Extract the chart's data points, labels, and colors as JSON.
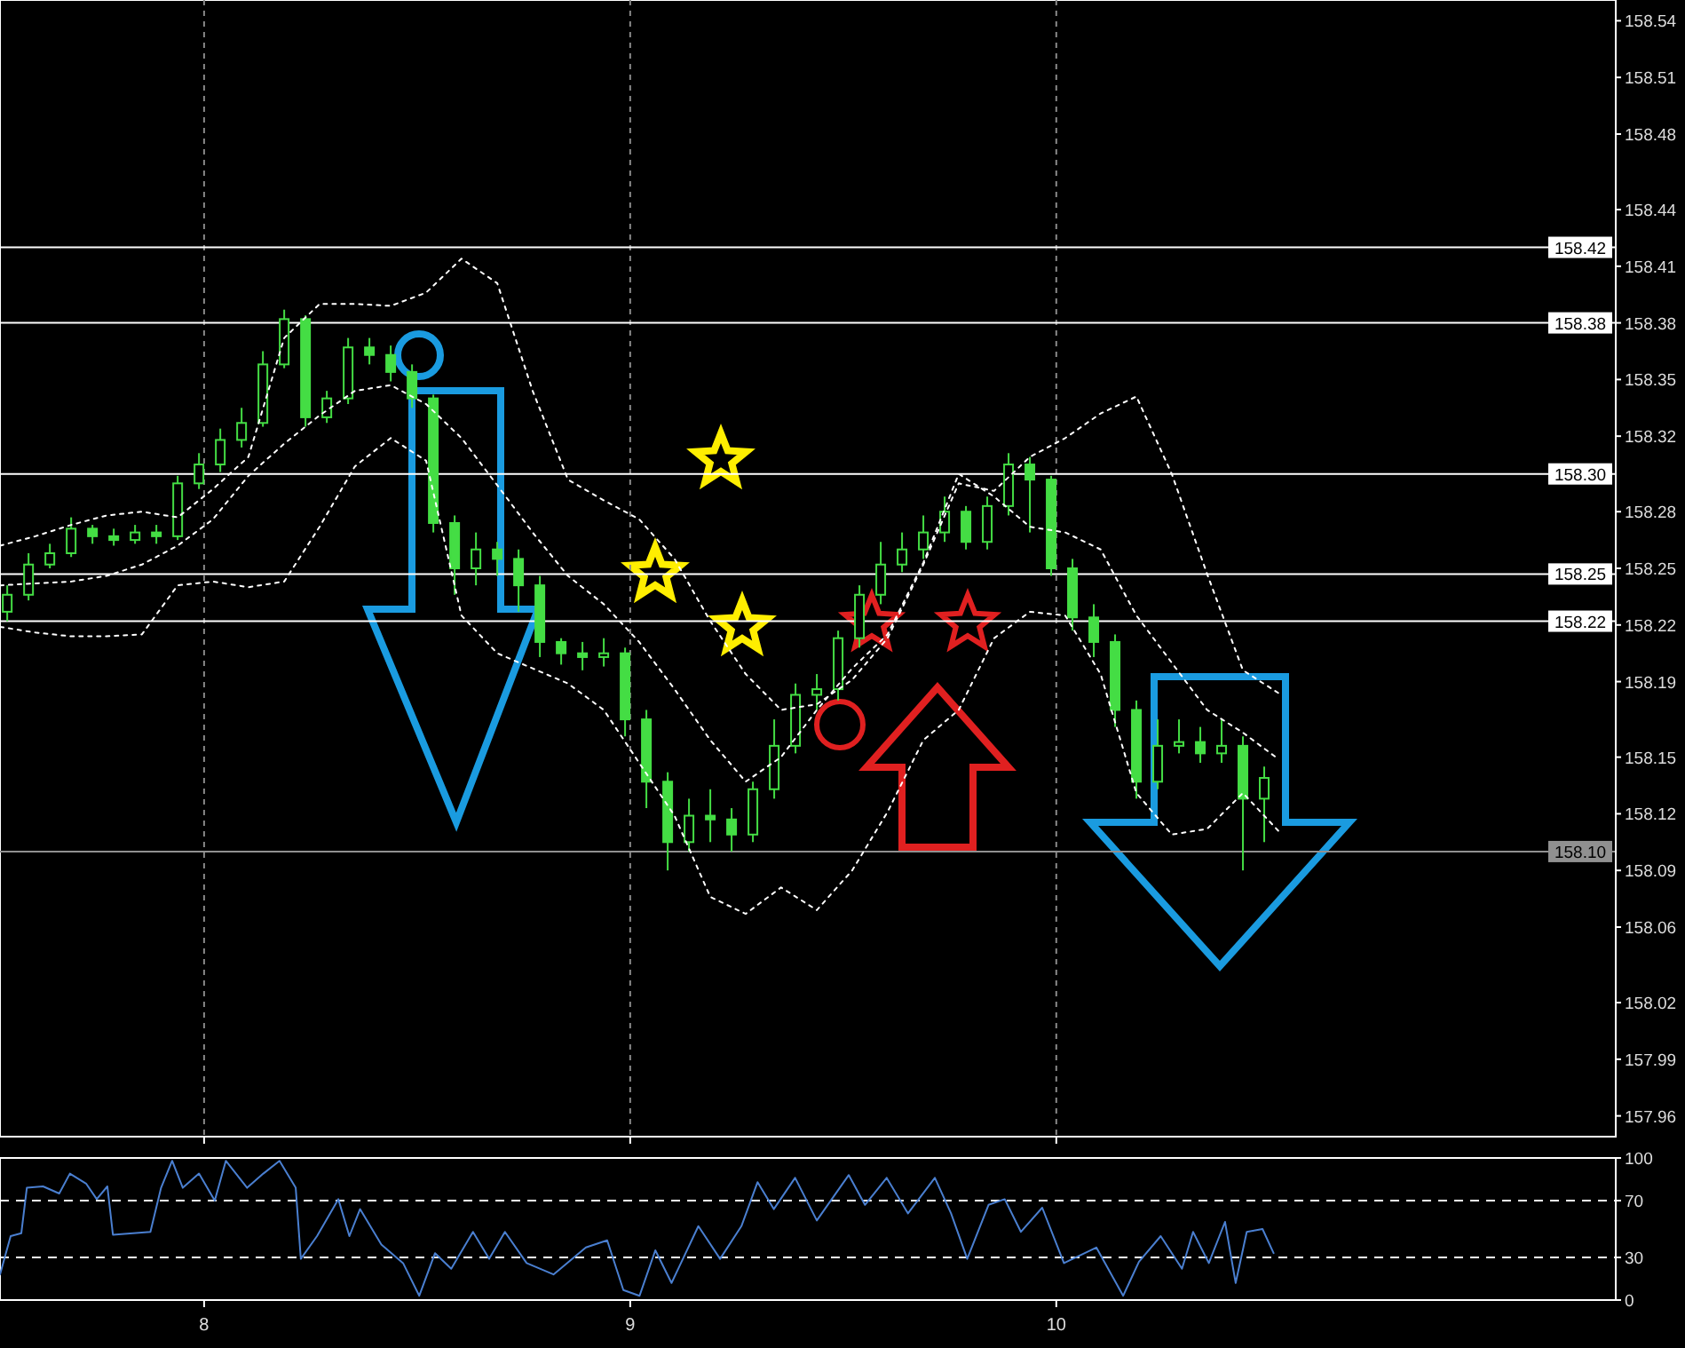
{
  "chart_data": [
    {
      "type": "candlestick",
      "color": "#44dd44",
      "grid": "x",
      "tick_labels": "y",
      "xlim": [
        7.521,
        11.313
      ],
      "xticks": [
        8,
        9,
        10
      ],
      "ylim": [
        157.949,
        158.551
      ],
      "yticks": [
        158.54,
        158.51,
        158.48,
        158.44,
        158.41,
        158.38,
        158.35,
        158.32,
        158.28,
        158.25,
        158.22,
        158.19,
        158.15,
        158.12,
        158.09,
        158.06,
        158.02,
        157.99,
        157.96
      ],
      "x": [
        7.538,
        7.588,
        7.638,
        7.688,
        7.738,
        7.788,
        7.838,
        7.888,
        7.938,
        7.988,
        8.038,
        8.088,
        8.138,
        8.188,
        8.238,
        8.288,
        8.338,
        8.388,
        8.438,
        8.488,
        8.538,
        8.588,
        8.638,
        8.688,
        8.738,
        8.788,
        8.838,
        8.888,
        8.938,
        8.988,
        9.038,
        9.088,
        9.138,
        9.188,
        9.238,
        9.288,
        9.338,
        9.388,
        9.438,
        9.488,
        9.538,
        9.588,
        9.638,
        9.688,
        9.738,
        9.788,
        9.838,
        9.888,
        9.938,
        9.988,
        10.038,
        10.088,
        10.138,
        10.188,
        10.238,
        10.288,
        10.338,
        10.388,
        10.438,
        10.488
      ],
      "ohlc": [
        [
          158.227,
          158.241,
          158.222,
          158.236
        ],
        [
          158.236,
          158.258,
          158.233,
          158.252
        ],
        [
          158.252,
          158.263,
          158.25,
          158.258
        ],
        [
          158.258,
          158.277,
          158.256,
          158.271
        ],
        [
          158.271,
          158.273,
          158.263,
          158.267
        ],
        [
          158.267,
          158.271,
          158.262,
          158.265
        ],
        [
          158.265,
          158.273,
          158.263,
          158.269
        ],
        [
          158.269,
          158.273,
          158.263,
          158.267
        ],
        [
          158.267,
          158.299,
          158.265,
          158.295
        ],
        [
          158.295,
          158.311,
          158.292,
          158.305
        ],
        [
          158.305,
          158.324,
          158.301,
          158.318
        ],
        [
          158.318,
          158.335,
          158.314,
          158.327
        ],
        [
          158.327,
          158.365,
          158.325,
          158.358
        ],
        [
          158.358,
          158.387,
          158.356,
          158.382
        ],
        [
          158.382,
          158.384,
          158.325,
          158.33
        ],
        [
          158.33,
          158.344,
          158.327,
          158.34
        ],
        [
          158.34,
          158.372,
          158.337,
          158.367
        ],
        [
          158.367,
          158.372,
          158.358,
          158.363
        ],
        [
          158.363,
          158.368,
          158.349,
          158.354
        ],
        [
          158.354,
          158.358,
          158.335,
          158.34
        ],
        [
          158.34,
          158.342,
          158.269,
          158.274
        ],
        [
          158.274,
          158.278,
          158.236,
          158.25
        ],
        [
          158.25,
          158.269,
          158.241,
          158.26
        ],
        [
          158.26,
          158.264,
          158.246,
          158.255
        ],
        [
          158.255,
          158.26,
          158.227,
          158.241
        ],
        [
          158.241,
          158.246,
          158.203,
          158.211
        ],
        [
          158.211,
          158.213,
          158.199,
          158.205
        ],
        [
          158.205,
          158.211,
          158.196,
          158.203
        ],
        [
          158.203,
          158.213,
          158.198,
          158.205
        ],
        [
          158.205,
          158.208,
          158.161,
          158.17
        ],
        [
          158.17,
          158.175,
          158.123,
          158.137
        ],
        [
          158.137,
          158.142,
          158.09,
          158.105
        ],
        [
          158.105,
          158.128,
          158.1,
          158.119
        ],
        [
          158.119,
          158.133,
          158.105,
          158.117
        ],
        [
          158.117,
          158.123,
          158.1,
          158.109
        ],
        [
          158.109,
          158.137,
          158.105,
          158.133
        ],
        [
          158.133,
          158.17,
          158.128,
          158.156
        ],
        [
          158.156,
          158.189,
          158.152,
          158.183
        ],
        [
          158.183,
          158.194,
          158.175,
          158.186
        ],
        [
          158.186,
          158.217,
          158.18,
          158.213
        ],
        [
          158.213,
          158.241,
          158.208,
          158.236
        ],
        [
          158.236,
          158.264,
          158.231,
          158.252
        ],
        [
          158.252,
          158.269,
          158.248,
          158.26
        ],
        [
          158.26,
          158.278,
          158.255,
          158.269
        ],
        [
          158.269,
          158.288,
          158.264,
          158.28
        ],
        [
          158.28,
          158.283,
          158.26,
          158.264
        ],
        [
          158.264,
          158.288,
          158.26,
          158.283
        ],
        [
          158.283,
          158.311,
          158.278,
          158.305
        ],
        [
          158.305,
          158.309,
          158.269,
          158.297
        ],
        [
          158.297,
          158.299,
          158.246,
          158.25
        ],
        [
          158.25,
          158.255,
          158.217,
          158.224
        ],
        [
          158.224,
          158.231,
          158.203,
          158.211
        ],
        [
          158.211,
          158.215,
          158.166,
          158.175
        ],
        [
          158.175,
          158.18,
          158.128,
          158.137
        ],
        [
          158.137,
          158.17,
          158.133,
          158.156
        ],
        [
          158.156,
          158.17,
          158.152,
          158.158
        ],
        [
          158.158,
          158.166,
          158.147,
          158.152
        ],
        [
          158.152,
          158.17,
          158.147,
          158.156
        ],
        [
          158.156,
          158.161,
          158.09,
          158.128
        ],
        [
          158.128,
          158.145,
          158.105,
          158.139
        ]
      ],
      "series": [
        {
          "type": "line",
          "color": "#ffffff",
          "line_style": "dotted",
          "x": [
            7.521,
            7.604,
            7.688,
            7.771,
            7.854,
            7.938,
            8.021,
            8.104,
            8.188,
            8.271,
            8.354,
            8.438,
            8.521,
            8.604,
            8.688,
            8.771,
            8.854,
            8.938,
            9.021,
            9.104,
            9.188,
            9.271,
            9.354,
            9.438,
            9.521,
            9.604,
            9.688,
            9.771,
            9.854,
            9.938,
            10.021,
            10.104,
            10.188,
            10.271,
            10.354,
            10.438,
            10.521
          ],
          "values": [
            158.262,
            158.267,
            158.273,
            158.278,
            158.28,
            158.277,
            158.292,
            158.309,
            158.372,
            158.39,
            158.39,
            158.389,
            158.396,
            158.414,
            158.401,
            158.344,
            158.297,
            158.286,
            158.276,
            158.255,
            158.222,
            158.194,
            158.175,
            158.178,
            158.191,
            158.213,
            158.252,
            158.295,
            158.291,
            158.309,
            158.319,
            158.332,
            158.341,
            158.3,
            158.247,
            158.196,
            158.184
          ]
        },
        {
          "type": "line",
          "color": "#ffffff",
          "line_style": "dotted",
          "x": [
            7.521,
            7.604,
            7.688,
            7.771,
            7.854,
            7.938,
            8.021,
            8.104,
            8.188,
            8.271,
            8.354,
            8.438,
            8.521,
            8.604,
            8.688,
            8.771,
            8.854,
            8.938,
            9.021,
            9.104,
            9.188,
            9.271,
            9.354,
            9.438,
            9.521,
            9.604,
            9.688,
            9.771,
            9.854,
            9.938,
            10.021,
            10.104,
            10.188,
            10.271,
            10.354,
            10.438,
            10.521
          ],
          "values": [
            158.241,
            158.242,
            158.243,
            158.246,
            158.252,
            158.262,
            158.276,
            158.299,
            158.316,
            158.331,
            158.344,
            158.347,
            158.337,
            158.319,
            158.294,
            158.269,
            158.246,
            158.231,
            158.211,
            158.186,
            158.159,
            158.137,
            158.15,
            158.175,
            158.197,
            158.215,
            158.253,
            158.3,
            158.288,
            158.272,
            158.269,
            158.26,
            158.225,
            158.2,
            158.175,
            158.163,
            158.149
          ]
        },
        {
          "type": "line",
          "color": "#ffffff",
          "line_style": "dotted",
          "x": [
            7.521,
            7.604,
            7.688,
            7.771,
            7.854,
            7.938,
            8.021,
            8.104,
            8.188,
            8.271,
            8.354,
            8.438,
            8.521,
            8.604,
            8.688,
            8.771,
            8.854,
            8.938,
            9.021,
            9.104,
            9.188,
            9.271,
            9.354,
            9.438,
            9.521,
            9.604,
            9.688,
            9.771,
            9.854,
            9.938,
            10.021,
            10.104,
            10.188,
            10.271,
            10.354,
            10.438,
            10.521
          ],
          "values": [
            158.219,
            158.216,
            158.214,
            158.214,
            158.215,
            158.241,
            158.243,
            158.24,
            158.243,
            158.272,
            158.304,
            158.319,
            158.307,
            158.225,
            158.205,
            158.197,
            158.189,
            158.175,
            158.147,
            158.119,
            158.076,
            158.067,
            158.081,
            158.069,
            158.09,
            158.121,
            158.159,
            158.175,
            158.213,
            158.227,
            158.225,
            158.194,
            158.131,
            158.109,
            158.112,
            158.131,
            158.111
          ]
        }
      ],
      "ref_lines": [
        {
          "axis": "y",
          "value": 158.42,
          "label": "158.42",
          "color": "#ffffff"
        },
        {
          "axis": "y",
          "value": 158.38,
          "label": "158.38",
          "color": "#ffffff"
        },
        {
          "axis": "y",
          "value": 158.3,
          "label": "158.30",
          "color": "#ffffff"
        },
        {
          "axis": "y",
          "value": 158.247,
          "label": "158.25",
          "color": "#ffffff"
        },
        {
          "axis": "y",
          "value": 158.222,
          "label": "158.22",
          "color": "#ffffff"
        },
        {
          "axis": "y",
          "value": 158.1,
          "label": "158.10",
          "color": "#909090"
        }
      ]
    },
    {
      "type": "line",
      "color": "#4a7fd0",
      "xlim": [
        7.521,
        11.313
      ],
      "xticks": [
        8,
        9,
        10
      ],
      "ylim": [
        0,
        100
      ],
      "yticks": [
        0,
        30,
        70,
        100
      ],
      "x": [
        7.521,
        7.546,
        7.571,
        7.584,
        7.622,
        7.66,
        7.685,
        7.723,
        7.748,
        7.773,
        7.786,
        7.874,
        7.899,
        7.925,
        7.95,
        7.988,
        8.025,
        8.051,
        8.101,
        8.139,
        8.177,
        8.215,
        8.227,
        8.265,
        8.315,
        8.341,
        8.366,
        8.416,
        8.467,
        8.505,
        8.542,
        8.58,
        8.631,
        8.669,
        8.706,
        8.757,
        8.82,
        8.896,
        8.946,
        8.984,
        9.022,
        9.059,
        9.097,
        9.16,
        9.211,
        9.261,
        9.299,
        9.337,
        9.387,
        9.438,
        9.513,
        9.551,
        9.602,
        9.652,
        9.715,
        9.753,
        9.791,
        9.841,
        9.879,
        9.917,
        9.967,
        10.018,
        10.094,
        10.157,
        10.194,
        10.245,
        10.295,
        10.321,
        10.358,
        10.396,
        10.421,
        10.447,
        10.484,
        10.51
      ],
      "values": [
        18,
        45,
        47,
        79,
        80,
        75,
        89,
        82,
        71,
        80,
        46,
        48,
        79,
        98,
        79,
        89,
        70,
        98,
        79,
        89,
        98,
        79,
        29,
        45,
        71,
        45,
        64,
        39,
        26,
        3,
        33,
        22,
        48,
        29,
        48,
        26,
        18,
        37,
        42,
        7,
        3,
        35,
        12,
        52,
        29,
        52,
        83,
        64,
        86,
        56,
        88,
        67,
        86,
        61,
        86,
        61,
        29,
        67,
        71,
        48,
        65,
        26,
        37,
        3,
        27,
        45,
        22,
        48,
        26,
        55,
        12,
        48,
        50,
        33
      ],
      "ref_lines": [
        {
          "axis": "y",
          "value": 70,
          "color": "#ffffff",
          "line_style": "dashed"
        },
        {
          "axis": "y",
          "value": 30,
          "color": "#ffffff",
          "line_style": "dashed"
        }
      ]
    }
  ]
}
